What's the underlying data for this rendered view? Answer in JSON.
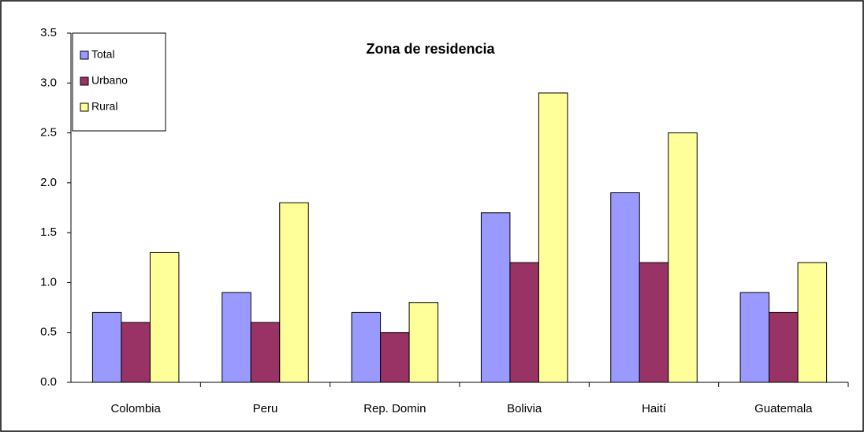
{
  "chart_data": {
    "type": "bar",
    "title": "Zona de residencia",
    "categories": [
      "Colombia",
      "Peru",
      "Rep. Domin",
      "Bolivia",
      "Haití",
      "Guatemala"
    ],
    "series": [
      {
        "name": "Total",
        "color": "#9999ff",
        "values": [
          0.7,
          0.9,
          0.7,
          1.7,
          1.9,
          0.9
        ]
      },
      {
        "name": "Urbano",
        "color": "#993366",
        "values": [
          0.6,
          0.6,
          0.5,
          1.2,
          1.2,
          0.7
        ]
      },
      {
        "name": "Rural",
        "color": "#ffff99",
        "values": [
          1.3,
          1.8,
          0.8,
          2.9,
          2.5,
          1.2
        ]
      }
    ],
    "ylim": [
      0,
      3.5
    ],
    "yticks": [
      {
        "value": 0,
        "label": "0.0"
      },
      0.5,
      {
        "value": 1,
        "label": "1.0"
      },
      1.5,
      {
        "value": 2,
        "label": "2.0"
      },
      2.5,
      {
        "value": 3,
        "label": "3.0"
      },
      3.5
    ],
    "grid": false,
    "legend": "upper left"
  }
}
